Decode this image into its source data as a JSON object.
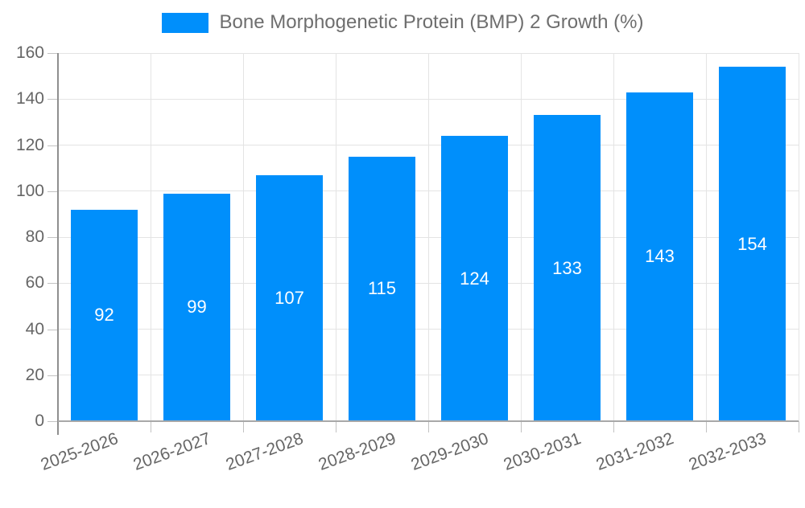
{
  "legend": {
    "label": "Bone Morphogenetic Protein (BMP) 2 Growth (%)"
  },
  "chart_data": {
    "type": "bar",
    "title": "Bone Morphogenetic Protein (BMP) 2 Growth (%)",
    "categories": [
      "2025-2026",
      "2026-2027",
      "2027-2028",
      "2028-2029",
      "2029-2030",
      "2030-2031",
      "2031-2032",
      "2032-2033"
    ],
    "values": [
      92,
      99,
      107,
      115,
      124,
      133,
      143,
      154
    ],
    "xlabel": "",
    "ylabel": "",
    "ylim": [
      0,
      160
    ],
    "ytick_step": 20,
    "grid": true,
    "legend_position": "top",
    "bar_color": "#008FFB",
    "bar_label_color": "#ffffff",
    "axis_text_color": "#666666",
    "grid_color": "#e4e4e4",
    "axis_line_color": "#8f8f8f"
  }
}
